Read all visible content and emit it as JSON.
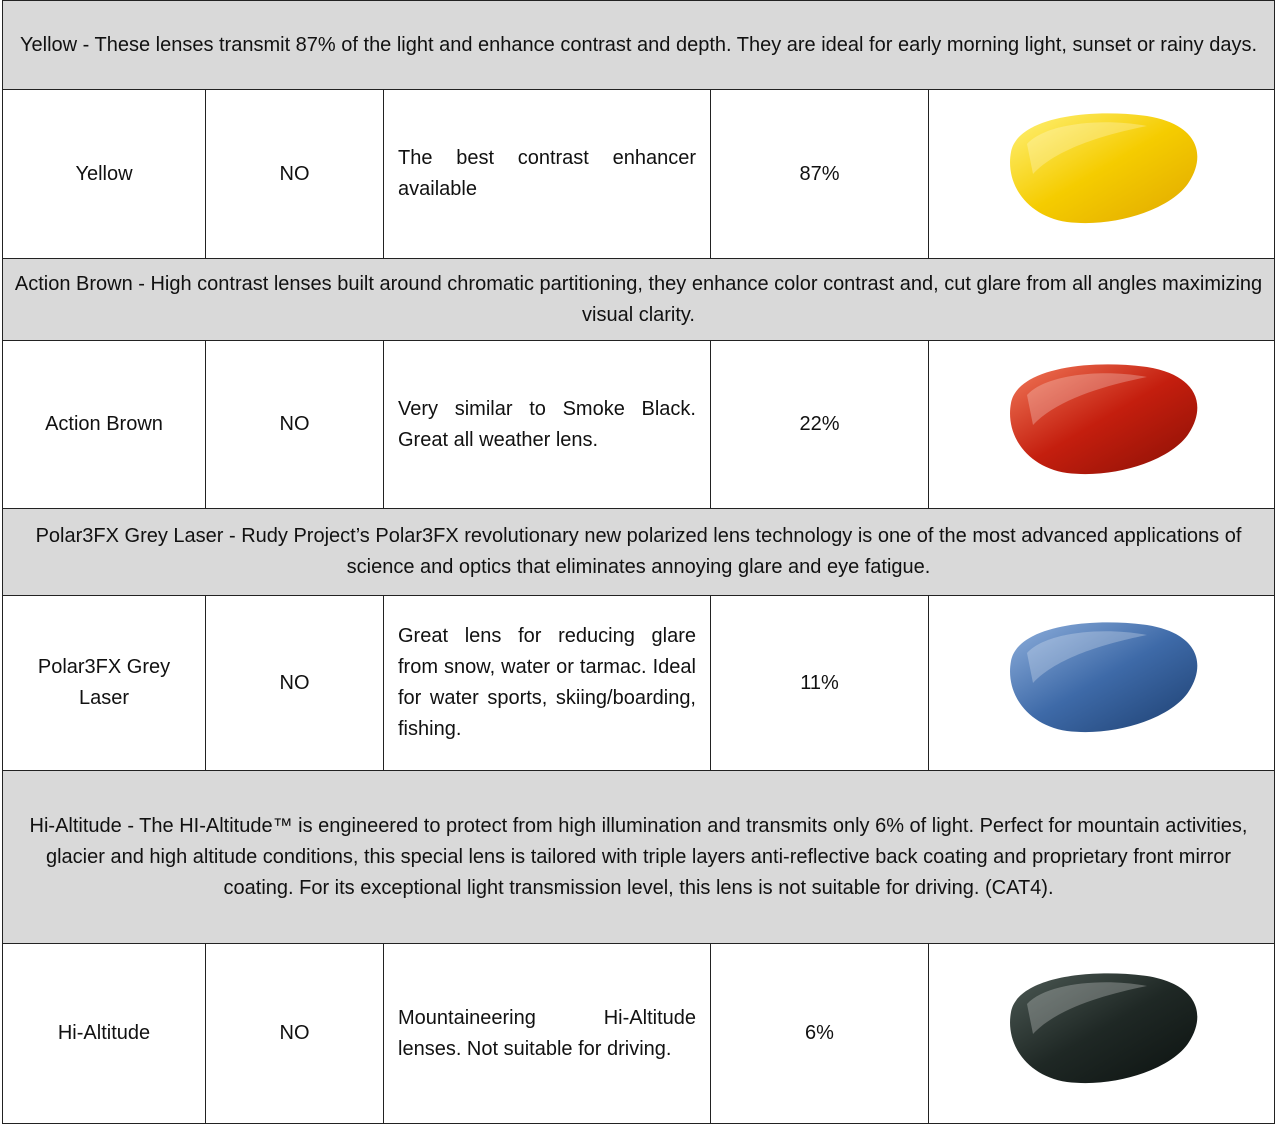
{
  "table": {
    "groups": [
      {
        "header": "Yellow - These lenses transmit 87% of the light and enhance contrast and depth. They are ideal for early morning light, sunset or rainy days.",
        "row": [
          "Yellow",
          "NO",
          "The best contrast enhancer available",
          "87%"
        ]
      },
      {
        "header": "Action Brown - High contrast lenses built around chromatic partitioning, they enhance color contrast and, cut glare from all angles maximizing visual clarity.",
        "row": [
          "Action Brown",
          "NO",
          "Very similar to Smoke Black. Great all weather lens.",
          "22%"
        ]
      },
      {
        "header": "Polar3FX Grey Laser - Rudy Project’s Polar3FX revolutionary new polarized lens technology is one of the most advanced applications of science and optics that eliminates annoying glare and eye fatigue.",
        "row": [
          "Polar3FX Grey Laser",
          "NO",
          "Great lens for reducing glare from snow, water or tarmac. Ideal for water sports, skiing/boarding, fishing.",
          "11%"
        ]
      },
      {
        "header": "Hi-Altitude - The HI-Altitude™ is engineered to protect from high illumination and transmits only 6% of light. Perfect for mountain activities, glacier and high altitude conditions, this special lens is tailored with triple layers anti-reflective back coating and proprietary front mirror coating. For its exceptional light transmission level, this lens is not suitable for driving. (CAT4).",
        "row": [
          "Hi-Altitude",
          "NO",
          "Mountaineering Hi-Altitude lenses. Not suitable for driving.",
          "6%"
        ]
      }
    ]
  }
}
